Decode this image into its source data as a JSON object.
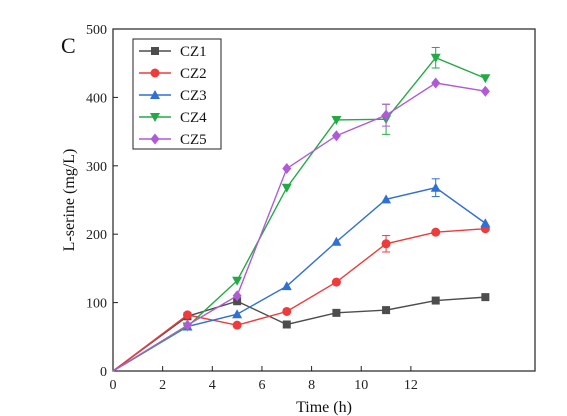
{
  "panel_label": "C",
  "chart_data": {
    "type": "line",
    "xlabel": "Time (h)",
    "ylabel": "L-serine (mg/L)",
    "xlim": [
      0,
      17
    ],
    "ylim": [
      0,
      500
    ],
    "xticks": [
      0,
      2,
      4,
      6,
      8,
      10,
      12
    ],
    "yticks": [
      0,
      100,
      200,
      300,
      400,
      500
    ],
    "grid": false,
    "legend_position": "top-left",
    "x": [
      0,
      3,
      5,
      7,
      9,
      11,
      13,
      15
    ],
    "series": [
      {
        "name": "CZ1",
        "color": "#4d4d4d",
        "marker": "square",
        "values": [
          0,
          80,
          102,
          68,
          85,
          89,
          103,
          108
        ]
      },
      {
        "name": "CZ2",
        "color": "#ee3b3b",
        "marker": "circle",
        "values": [
          0,
          82,
          67,
          87,
          130,
          186,
          203,
          208
        ]
      },
      {
        "name": "CZ3",
        "color": "#2f6fd6",
        "marker": "triangle-up",
        "values": [
          0,
          65,
          83,
          124,
          189,
          251,
          268,
          216
        ]
      },
      {
        "name": "CZ4",
        "color": "#22aa44",
        "marker": "triangle-down",
        "values": [
          0,
          65,
          132,
          268,
          367,
          368,
          458,
          428
        ]
      },
      {
        "name": "CZ5",
        "color": "#b05ad8",
        "marker": "diamond",
        "values": [
          0,
          67,
          110,
          296,
          344,
          374,
          421,
          409
        ]
      }
    ]
  }
}
